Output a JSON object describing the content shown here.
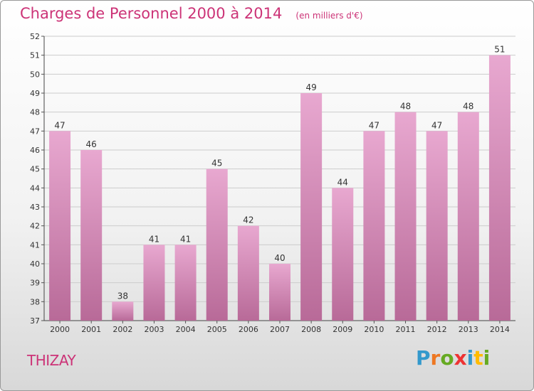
{
  "header": {
    "title": "Charges de Personnel 2000 à 2014",
    "subtitle": "(en milliers d'€)"
  },
  "footer": {
    "town": "THIZAY",
    "logo_text": "Proxiti",
    "logo_colors": [
      "#3399cc",
      "#ee7722",
      "#66aa22",
      "#ee3333",
      "#3399cc",
      "#ffbb00",
      "#66aa22"
    ]
  },
  "colors": {
    "bar_top": "#e8a8d0",
    "bar_bottom": "#b86a98",
    "grid": "#cccccc",
    "title": "#cc3377"
  },
  "chart_data": {
    "type": "bar",
    "categories": [
      "2000",
      "2001",
      "2002",
      "2003",
      "2004",
      "2005",
      "2006",
      "2007",
      "2008",
      "2009",
      "2010",
      "2011",
      "2012",
      "2013",
      "2014"
    ],
    "values": [
      47,
      46,
      38,
      41,
      41,
      45,
      42,
      40,
      49,
      44,
      47,
      48,
      47,
      48,
      51
    ],
    "ylim": [
      37,
      52
    ],
    "yticks": [
      37,
      38,
      39,
      40,
      41,
      42,
      43,
      44,
      45,
      46,
      47,
      48,
      49,
      50,
      51,
      52
    ],
    "grid": true,
    "title": "Charges de Personnel 2000 à 2014",
    "xlabel": "",
    "ylabel": ""
  }
}
